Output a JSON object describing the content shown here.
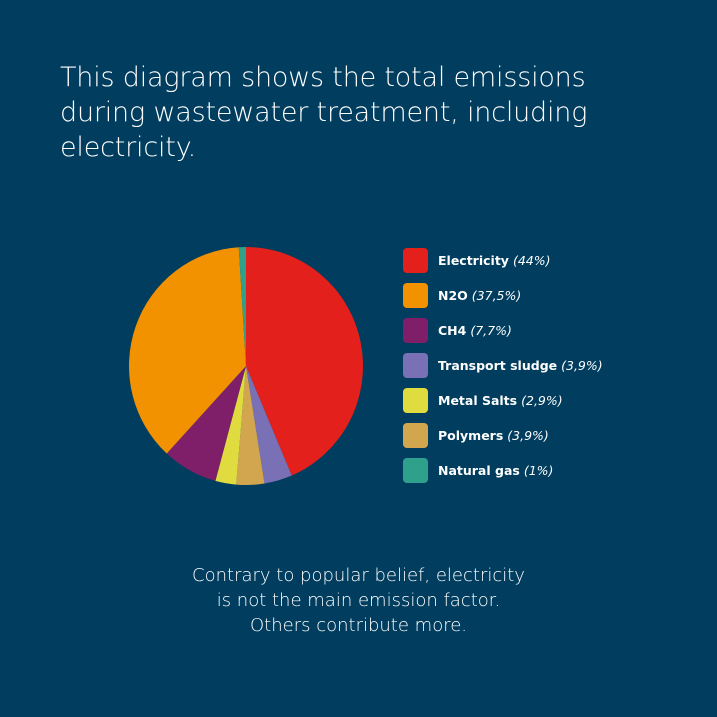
{
  "background_color": "#003d5e",
  "heading": {
    "lines": [
      "This diagram shows the total emissions",
      "during wastewater treatment, including",
      "electricity."
    ]
  },
  "legend": {
    "items": [
      {
        "label": "Electricity",
        "pct_text": "(44%)",
        "color": "#e3201b"
      },
      {
        "label": "N2O",
        "pct_text": "(37,5%)",
        "color": "#f39200"
      },
      {
        "label": "CH4",
        "pct_text": "(7,7%)",
        "color": "#7f1f69"
      },
      {
        "label": "Transport sludge",
        "pct_text": "(3,9%)",
        "color": "#7a70b5"
      },
      {
        "label": "Metal Salts",
        "pct_text": "(2,9%)",
        "color": "#e0dc3f"
      },
      {
        "label": "Polymers",
        "pct_text": "(3,9%)",
        "color": "#d2a64e"
      },
      {
        "label": "Natural gas",
        "pct_text": "(1%)",
        "color": "#2fa08b"
      }
    ]
  },
  "footnote": {
    "lines": [
      "Contrary to popular belief, electricity",
      "is not the main emission factor.",
      "Others contribute more."
    ]
  },
  "chart_data": {
    "type": "pie",
    "title": "This diagram shows the total emissions during wastewater treatment, including electricity.",
    "categories": [
      "Electricity",
      "N2O",
      "CH4",
      "Transport sludge",
      "Metal Salts",
      "Polymers",
      "Natural gas"
    ],
    "values": [
      44,
      37.5,
      7.7,
      3.9,
      2.9,
      3.9,
      1
    ],
    "units": "%",
    "colors": [
      "#e3201b",
      "#f39200",
      "#7f1f69",
      "#7a70b5",
      "#e0dc3f",
      "#d2a64e",
      "#2fa08b"
    ],
    "slice_order_clockwise_from_top": [
      "Electricity",
      "Transport sludge",
      "Polymers",
      "Metal Salts",
      "CH4",
      "N2O",
      "Natural gas"
    ],
    "legend_position": "right",
    "annotation": "Contrary to popular belief, electricity is not the main emission factor. Others contribute more."
  }
}
